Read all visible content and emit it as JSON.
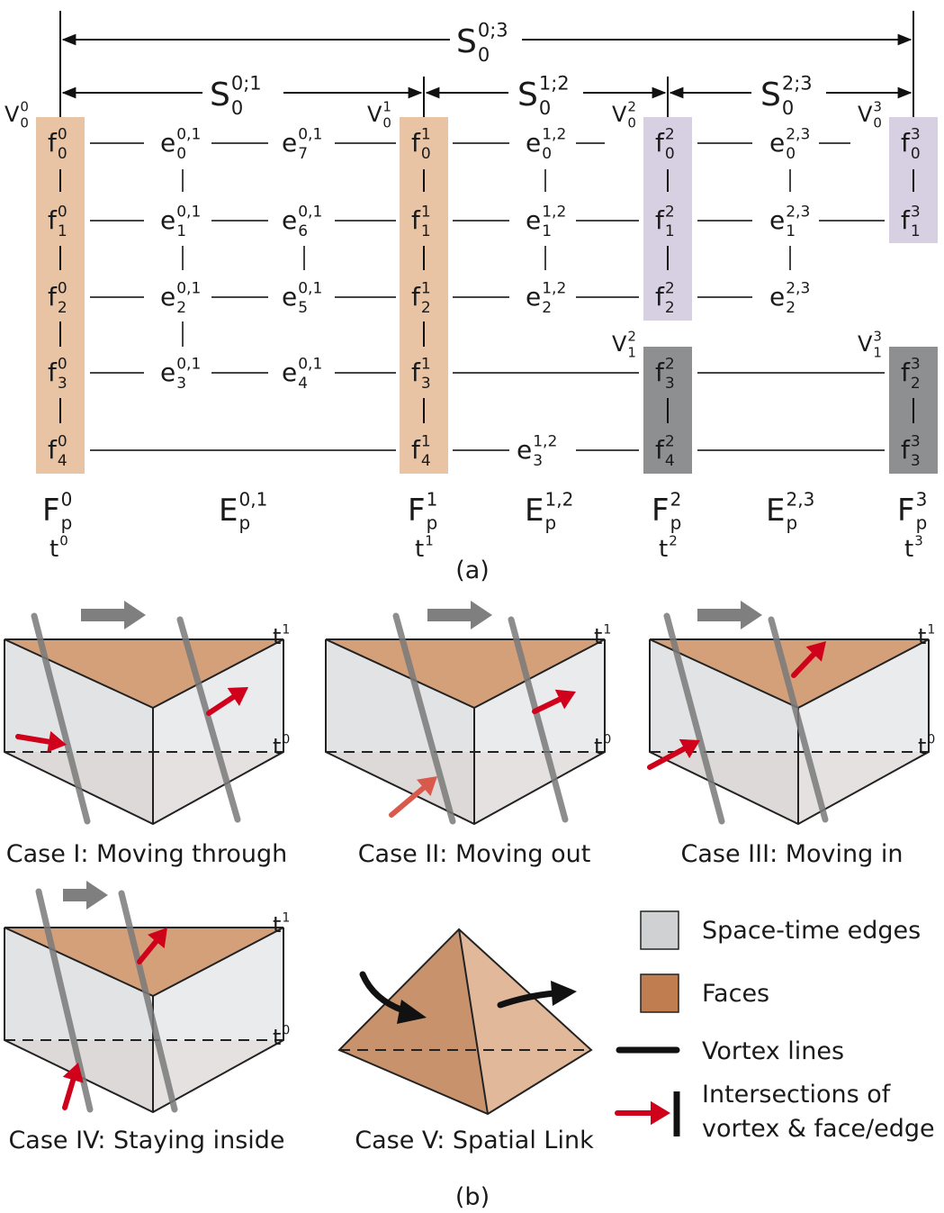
{
  "panel_a": {
    "caption": "(a)",
    "spans": [
      {
        "base": "S",
        "sup": "0;3",
        "sub": "0"
      },
      {
        "base": "S",
        "sup": "0;1",
        "sub": "0"
      },
      {
        "base": "S",
        "sup": "1;2",
        "sub": "0"
      },
      {
        "base": "S",
        "sup": "2;3",
        "sub": "0"
      }
    ],
    "frames": [
      {
        "id": "frame-0",
        "vertex": {
          "base": "V",
          "sup": "0",
          "sub": "0"
        },
        "faces": [
          {
            "base": "f",
            "sup": "0",
            "sub": "0"
          },
          {
            "base": "f",
            "sup": "0",
            "sub": "1"
          },
          {
            "base": "f",
            "sup": "0",
            "sub": "2"
          },
          {
            "base": "f",
            "sup": "0",
            "sub": "3"
          },
          {
            "base": "f",
            "sup": "0",
            "sub": "4"
          }
        ],
        "label": {
          "base": "F",
          "sup": "0",
          "sub": "p"
        },
        "time": {
          "base": "t",
          "sup": "0"
        },
        "color": "#e8c4a4"
      },
      {
        "id": "frame-1",
        "vertex": {
          "base": "V",
          "sup": "1",
          "sub": "0"
        },
        "faces": [
          {
            "base": "f",
            "sup": "1",
            "sub": "0"
          },
          {
            "base": "f",
            "sup": "1",
            "sub": "1"
          },
          {
            "base": "f",
            "sup": "1",
            "sub": "2"
          },
          {
            "base": "f",
            "sup": "1",
            "sub": "3"
          },
          {
            "base": "f",
            "sup": "1",
            "sub": "4"
          }
        ],
        "label": {
          "base": "F",
          "sup": "1",
          "sub": "p"
        },
        "time": {
          "base": "t",
          "sup": "1"
        },
        "color": "#e8c4a4"
      },
      {
        "id": "frame-2",
        "vertex": {
          "base": "V",
          "sup": "2",
          "sub": "0"
        },
        "vertex2": {
          "base": "V",
          "sup": "2",
          "sub": "1"
        },
        "faces": [
          {
            "base": "f",
            "sup": "2",
            "sub": "0"
          },
          {
            "base": "f",
            "sup": "2",
            "sub": "1"
          },
          {
            "base": "f",
            "sup": "2",
            "sub": "2"
          },
          {
            "base": "f",
            "sup": "2",
            "sub": "3"
          },
          {
            "base": "f",
            "sup": "2",
            "sub": "4"
          }
        ],
        "label": {
          "base": "F",
          "sup": "2",
          "sub": "p"
        },
        "time": {
          "base": "t",
          "sup": "2"
        },
        "color": "#d6d0e2",
        "color2": "#8e8f91"
      },
      {
        "id": "frame-3",
        "vertex": {
          "base": "V",
          "sup": "3",
          "sub": "0"
        },
        "vertex2": {
          "base": "V",
          "sup": "3",
          "sub": "1"
        },
        "faces": [
          {
            "base": "f",
            "sup": "3",
            "sub": "0"
          },
          {
            "base": "f",
            "sup": "3",
            "sub": "1"
          },
          {
            "base": "f",
            "sup": "3",
            "sub": "2"
          },
          {
            "base": "f",
            "sup": "3",
            "sub": "3"
          }
        ],
        "label": {
          "base": "F",
          "sup": "3",
          "sub": "p"
        },
        "time": {
          "base": "t",
          "sup": "3"
        },
        "color": "#d6d0e2",
        "color2": "#8e8f91"
      }
    ],
    "edges": [
      {
        "base": "e",
        "sup": "0,1",
        "sub": "0"
      },
      {
        "base": "e",
        "sup": "0,1",
        "sub": "1"
      },
      {
        "base": "e",
        "sup": "0,1",
        "sub": "2"
      },
      {
        "base": "e",
        "sup": "0,1",
        "sub": "3"
      },
      {
        "base": "e",
        "sup": "0,1",
        "sub": "4"
      },
      {
        "base": "e",
        "sup": "0,1",
        "sub": "5"
      },
      {
        "base": "e",
        "sup": "0,1",
        "sub": "6"
      },
      {
        "base": "e",
        "sup": "0,1",
        "sub": "7"
      },
      {
        "base": "e",
        "sup": "1,2",
        "sub": "0"
      },
      {
        "base": "e",
        "sup": "1,2",
        "sub": "1"
      },
      {
        "base": "e",
        "sup": "1,2",
        "sub": "2"
      },
      {
        "base": "e",
        "sup": "1,2",
        "sub": "3"
      },
      {
        "base": "e",
        "sup": "2,3",
        "sub": "0"
      },
      {
        "base": "e",
        "sup": "2,3",
        "sub": "1"
      },
      {
        "base": "e",
        "sup": "2,3",
        "sub": "2"
      }
    ],
    "edge_sets": [
      {
        "base": "E",
        "sup": "0,1",
        "sub": "p"
      },
      {
        "base": "E",
        "sup": "1,2",
        "sub": "p"
      },
      {
        "base": "E",
        "sup": "2,3",
        "sub": "p"
      }
    ]
  },
  "panel_b": {
    "caption": "(b)",
    "time_top": {
      "base": "t",
      "sup": "1"
    },
    "time_bottom": {
      "base": "t",
      "sup": "0"
    },
    "cases": [
      "Case I: Moving through",
      "Case II: Moving out",
      "Case III: Moving in",
      "Case IV: Staying inside",
      "Case V: Spatial Link"
    ],
    "legend": [
      {
        "label": "Space-time edges",
        "icon": "gray-square",
        "color": "#cfd1d3"
      },
      {
        "label": "Faces",
        "icon": "brown-square",
        "color": "#c07d50"
      },
      {
        "label": "Vortex lines",
        "icon": "black-line",
        "color": "#111111"
      },
      {
        "label": "Intersections of",
        "label2": "vortex & face/edge",
        "icon": "red-arrow-bar",
        "color": "#d0021b"
      }
    ],
    "colors": {
      "face": "#d4a07a",
      "face_dark": "#c8936c",
      "side": "#dcdee1",
      "bottom": "#d9bca9",
      "vortex": "#7a7a7a",
      "arrow": "#d0021b",
      "motion": "#7f7f7f"
    }
  }
}
